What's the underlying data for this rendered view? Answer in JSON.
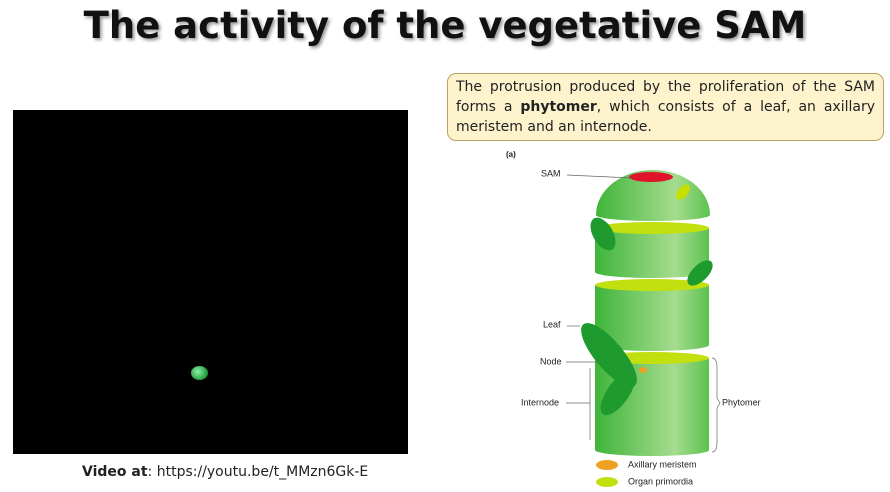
{
  "title": "The activity of the vegetative SAM",
  "callout": {
    "before": "The protrusion produced by the proliferation of the SAM forms a",
    "bold": "phytomer",
    "after": ", which consists of a leaf, an axillary meristem and an internode."
  },
  "video": {
    "label": "Video at",
    "text": ": https://youtu.be/t_MMzn6Gk-E"
  },
  "figure": {
    "panel": "(a)",
    "labels": {
      "sam": "SAM",
      "leaf": "Leaf",
      "node": "Node",
      "internode": "Internode",
      "phytomer": "Phytomer"
    },
    "legend": [
      "Axillary meristem",
      "Organ primordia"
    ]
  }
}
